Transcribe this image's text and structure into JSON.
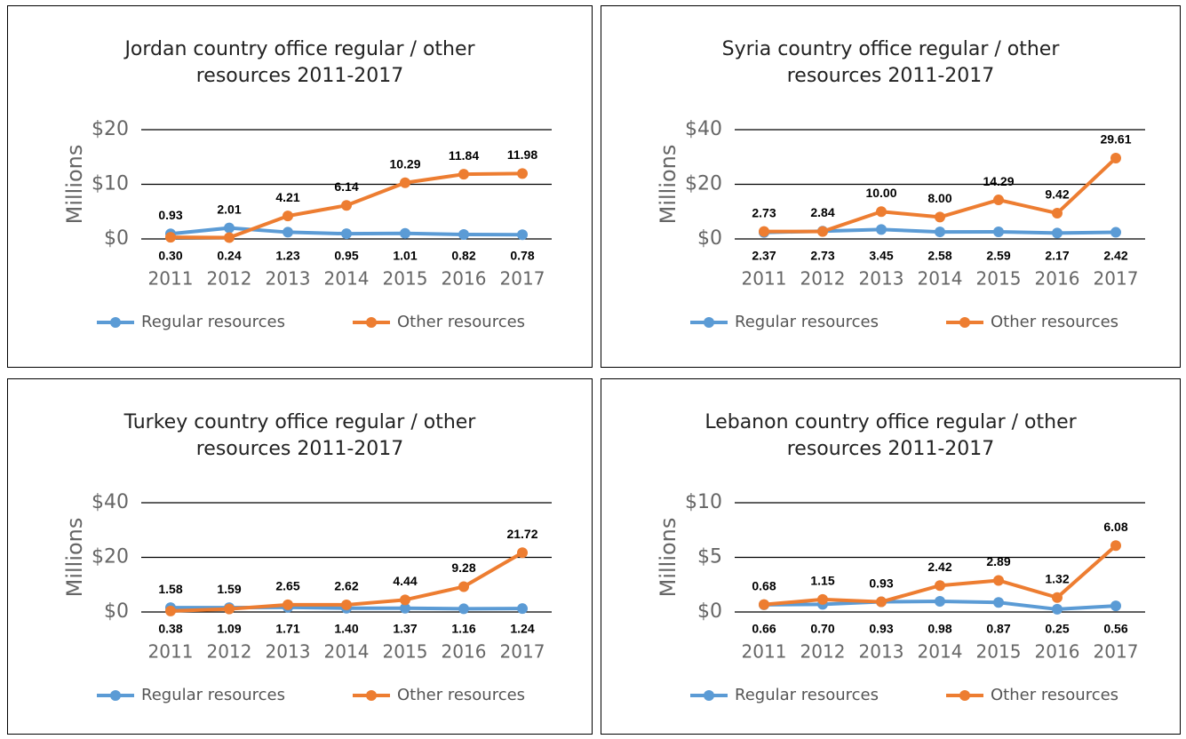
{
  "chart_data": [
    {
      "type": "line",
      "title": "Jordan country office regular / other resources 2011-2017",
      "y_label": "Millions",
      "categories": [
        "2011",
        "2012",
        "2013",
        "2014",
        "2015",
        "2016",
        "2017"
      ],
      "ylim": [
        0,
        20
      ],
      "yticks": [
        {
          "value": 0,
          "label": "$0"
        },
        {
          "value": 10,
          "label": "$10"
        },
        {
          "value": 20,
          "label": "$20"
        }
      ],
      "grid": true,
      "legend": "bottom",
      "series": [
        {
          "name": "Regular resources",
          "color": "#5b9bd5",
          "values": [
            0.93,
            2.01,
            1.23,
            0.95,
            1.01,
            0.82,
            0.78
          ],
          "value_labels": [
            "0.93",
            "2.01",
            "1.23",
            "0.95",
            "1.01",
            "0.82",
            "0.78"
          ]
        },
        {
          "name": "Other resources",
          "color": "#ed7d31",
          "values": [
            0.3,
            0.24,
            4.21,
            6.14,
            10.29,
            11.84,
            11.98
          ],
          "value_labels": [
            "0.30",
            "0.24",
            "4.21",
            "6.14",
            "10.29",
            "11.84",
            "11.98"
          ]
        }
      ]
    },
    {
      "type": "line",
      "title": "Syria country office regular / other resources 2011-2017",
      "y_label": "Millions",
      "categories": [
        "2011",
        "2012",
        "2013",
        "2014",
        "2015",
        "2016",
        "2017"
      ],
      "ylim": [
        0,
        40
      ],
      "yticks": [
        {
          "value": 0,
          "label": "$0"
        },
        {
          "value": 20,
          "label": "$20"
        },
        {
          "value": 40,
          "label": "$40"
        }
      ],
      "grid": true,
      "legend": "bottom",
      "series": [
        {
          "name": "Regular resources",
          "color": "#5b9bd5",
          "values": [
            2.37,
            2.84,
            3.45,
            2.58,
            2.59,
            2.17,
            2.42
          ],
          "value_labels": [
            "2.37",
            "2.84",
            "3.45",
            "2.58",
            "2.59",
            "2.17",
            "2.42"
          ]
        },
        {
          "name": "Other resources",
          "color": "#ed7d31",
          "values": [
            2.73,
            2.73,
            10.0,
            8.0,
            14.29,
            9.42,
            29.61
          ],
          "value_labels": [
            "2.73",
            "2.73",
            "10.00",
            "8.00",
            "14.29",
            "9.42",
            "29.61"
          ]
        }
      ]
    },
    {
      "type": "line",
      "title": "Turkey country office regular / other resources 2011-2017",
      "y_label": "Millions",
      "categories": [
        "2011",
        "2012",
        "2013",
        "2014",
        "2015",
        "2016",
        "2017"
      ],
      "ylim": [
        0,
        40
      ],
      "yticks": [
        {
          "value": 0,
          "label": "$0"
        },
        {
          "value": 20,
          "label": "$20"
        },
        {
          "value": 40,
          "label": "$40"
        }
      ],
      "grid": true,
      "legend": "bottom",
      "series": [
        {
          "name": "Regular resources",
          "color": "#5b9bd5",
          "values": [
            1.58,
            1.59,
            1.71,
            1.4,
            1.37,
            1.16,
            1.24
          ],
          "value_labels": [
            "1.58",
            "1.59",
            "1.71",
            "1.40",
            "1.37",
            "1.16",
            "1.24"
          ]
        },
        {
          "name": "Other resources",
          "color": "#ed7d31",
          "values": [
            0.38,
            1.09,
            2.65,
            2.62,
            4.44,
            9.28,
            21.72
          ],
          "value_labels": [
            "0.38",
            "1.09",
            "2.65",
            "2.62",
            "4.44",
            "9.28",
            "21.72"
          ]
        }
      ]
    },
    {
      "type": "line",
      "title": "Lebanon country office regular / other resources 2011-2017",
      "y_label": "Millions",
      "categories": [
        "2011",
        "2012",
        "2013",
        "2014",
        "2015",
        "2016",
        "2017"
      ],
      "ylim": [
        0,
        10
      ],
      "yticks": [
        {
          "value": 0,
          "label": "$0"
        },
        {
          "value": 5,
          "label": "$5"
        },
        {
          "value": 10,
          "label": "$10"
        }
      ],
      "grid": true,
      "legend": "bottom",
      "series": [
        {
          "name": "Regular resources",
          "color": "#5b9bd5",
          "values": [
            0.66,
            0.7,
            0.93,
            0.98,
            0.87,
            0.25,
            0.56
          ],
          "value_labels": [
            "0.66",
            "0.70",
            "0.93",
            "0.98",
            "0.87",
            "0.25",
            "0.56"
          ]
        },
        {
          "name": "Other resources",
          "color": "#ed7d31",
          "values": [
            0.68,
            1.15,
            0.93,
            2.42,
            2.89,
            1.32,
            6.08
          ],
          "value_labels": [
            "0.68",
            "1.15",
            "0.93",
            "2.42",
            "2.89",
            "1.32",
            "6.08"
          ]
        }
      ]
    }
  ]
}
